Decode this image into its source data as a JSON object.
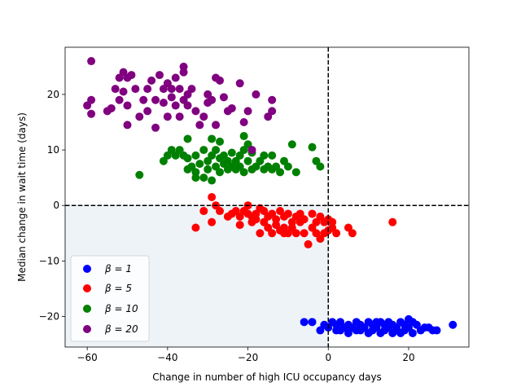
{
  "chart_data": {
    "type": "scatter",
    "title": "",
    "xlabel": "Change in number of high ICU occupancy days",
    "ylabel": "Median change in wait time (days)",
    "xlim": [
      -65.5,
      35
    ],
    "ylim": [
      -25.5,
      28.5
    ],
    "xticks": [
      -60,
      -40,
      -20,
      0,
      20
    ],
    "yticks": [
      -20,
      -10,
      0,
      10,
      20
    ],
    "xtick_labels": [
      "−60",
      "−40",
      "−20",
      "0",
      "20"
    ],
    "ytick_labels": [
      "−20",
      "−10",
      "0",
      "10",
      "20"
    ],
    "reference_lines": {
      "x": 0,
      "y": 0,
      "style": "dashed"
    },
    "shaded_region": {
      "x": [
        -65.5,
        0
      ],
      "y": [
        -25.5,
        0
      ],
      "color": "#eef3f8"
    },
    "legend": {
      "position": "lower-left",
      "entries": [
        {
          "series": "b1",
          "label": "β = 1"
        },
        {
          "series": "b5",
          "label": "β = 5"
        },
        {
          "series": "b10",
          "label": "β = 10"
        },
        {
          "series": "b20",
          "label": "β = 20"
        }
      ]
    },
    "series": [
      {
        "name": "beta=1",
        "id": "b1",
        "color": "#0000ff",
        "points": [
          [
            -6,
            -21
          ],
          [
            -4,
            -21
          ],
          [
            -2,
            -22.5
          ],
          [
            -1,
            -21.5
          ],
          [
            0,
            -22
          ],
          [
            1,
            -21
          ],
          [
            2,
            -21.5
          ],
          [
            2,
            -22.5
          ],
          [
            3,
            -21
          ],
          [
            4,
            -22
          ],
          [
            5,
            -21.5
          ],
          [
            5,
            -23
          ],
          [
            6,
            -22
          ],
          [
            7,
            -21
          ],
          [
            7,
            -22.5
          ],
          [
            8,
            -21.5
          ],
          [
            9,
            -22
          ],
          [
            10,
            -21
          ],
          [
            10,
            -23
          ],
          [
            11,
            -21.5
          ],
          [
            11,
            -22.5
          ],
          [
            12,
            -22
          ],
          [
            13,
            -21
          ],
          [
            13,
            -23
          ],
          [
            14,
            -21.5
          ],
          [
            14,
            -22.5
          ],
          [
            15,
            -22
          ],
          [
            15,
            -21
          ],
          [
            16,
            -23
          ],
          [
            16,
            -21.5
          ],
          [
            17,
            -22
          ],
          [
            17,
            -22.5
          ],
          [
            18,
            -21
          ],
          [
            18,
            -23
          ],
          [
            19,
            -21.5
          ],
          [
            19,
            -22.5
          ],
          [
            20,
            -22
          ],
          [
            20,
            -20.5
          ],
          [
            21,
            -21
          ],
          [
            21,
            -23
          ],
          [
            22,
            -21.5
          ],
          [
            23,
            -22.5
          ],
          [
            24,
            -22
          ],
          [
            25,
            -22
          ],
          [
            26,
            -22.5
          ],
          [
            27,
            -22.5
          ],
          [
            31,
            -21.5
          ],
          [
            3,
            -22.5
          ],
          [
            8,
            -22.5
          ],
          [
            12,
            -21
          ]
        ]
      },
      {
        "name": "beta=5",
        "id": "b5",
        "color": "#ff0000",
        "points": [
          [
            -33,
            -4
          ],
          [
            -31,
            -1
          ],
          [
            -29,
            1.5
          ],
          [
            -29,
            -3
          ],
          [
            -28,
            0
          ],
          [
            -27,
            -1
          ],
          [
            -25,
            -2
          ],
          [
            -24,
            -1.5
          ],
          [
            -23,
            -1
          ],
          [
            -22,
            -2
          ],
          [
            -22,
            -3.5
          ],
          [
            -21,
            -1
          ],
          [
            -20,
            0
          ],
          [
            -19,
            -2
          ],
          [
            -19,
            -3
          ],
          [
            -18,
            -1.5
          ],
          [
            -18,
            -2.5
          ],
          [
            -17,
            -0.5
          ],
          [
            -17,
            -5
          ],
          [
            -16,
            -1
          ],
          [
            -16,
            -3
          ],
          [
            -15,
            -2
          ],
          [
            -15,
            -4
          ],
          [
            -14,
            -1.5
          ],
          [
            -14,
            -5
          ],
          [
            -13,
            -2.5
          ],
          [
            -13,
            -3.5
          ],
          [
            -12,
            -1
          ],
          [
            -12,
            -4.5
          ],
          [
            -11,
            -2
          ],
          [
            -11,
            -4
          ],
          [
            -10,
            -1.5
          ],
          [
            -10,
            -5
          ],
          [
            -9,
            -3
          ],
          [
            -9,
            -4
          ],
          [
            -8,
            -2
          ],
          [
            -8,
            -5
          ],
          [
            -7,
            -1.5
          ],
          [
            -7,
            -3
          ],
          [
            -6,
            -2.5
          ],
          [
            -6,
            -5
          ],
          [
            -5,
            -7
          ],
          [
            -4,
            -1.5
          ],
          [
            -4,
            -4
          ],
          [
            -3,
            -3
          ],
          [
            -3,
            -5
          ],
          [
            -2,
            -2
          ],
          [
            -2,
            -6
          ],
          [
            -1,
            -3
          ],
          [
            -1,
            -5
          ],
          [
            0,
            -2.5
          ],
          [
            0,
            -4.5
          ],
          [
            1,
            -3
          ],
          [
            1,
            -4
          ],
          [
            2,
            -5
          ],
          [
            5,
            -4
          ],
          [
            6,
            -5
          ],
          [
            16,
            -3
          ],
          [
            -20,
            -1.5
          ],
          [
            -11,
            -5
          ]
        ]
      },
      {
        "name": "beta=10",
        "id": "b10",
        "color": "#008000",
        "points": [
          [
            -47,
            5.5
          ],
          [
            -41,
            8
          ],
          [
            -40,
            9
          ],
          [
            -39,
            10
          ],
          [
            -38,
            9
          ],
          [
            -37,
            10
          ],
          [
            -36,
            9
          ],
          [
            -35,
            8.5
          ],
          [
            -35,
            6.5
          ],
          [
            -34,
            7
          ],
          [
            -33,
            6
          ],
          [
            -33,
            9
          ],
          [
            -32,
            7.5
          ],
          [
            -31,
            5
          ],
          [
            -31,
            10
          ],
          [
            -30,
            8
          ],
          [
            -30,
            6.5
          ],
          [
            -29,
            9
          ],
          [
            -29,
            12
          ],
          [
            -28,
            7
          ],
          [
            -28,
            10
          ],
          [
            -27,
            6
          ],
          [
            -27,
            8.5
          ],
          [
            -27,
            11.5
          ],
          [
            -26,
            7.5
          ],
          [
            -26,
            9
          ],
          [
            -25,
            6.5
          ],
          [
            -25,
            8
          ],
          [
            -24,
            9.5
          ],
          [
            -24,
            7
          ],
          [
            -23,
            6.5
          ],
          [
            -23,
            8
          ],
          [
            -22,
            7
          ],
          [
            -22,
            9
          ],
          [
            -21,
            10
          ],
          [
            -21,
            6
          ],
          [
            -20,
            8
          ],
          [
            -20,
            11
          ],
          [
            -19,
            9.5
          ],
          [
            -19,
            6.5
          ],
          [
            -18,
            7
          ],
          [
            -17,
            8
          ],
          [
            -16,
            6.5
          ],
          [
            -16,
            9
          ],
          [
            -15,
            7
          ],
          [
            -14,
            9
          ],
          [
            -14,
            6.5
          ],
          [
            -13,
            7
          ],
          [
            -12,
            6
          ],
          [
            -11,
            8
          ],
          [
            -10,
            7
          ],
          [
            -9,
            11
          ],
          [
            -8,
            6
          ],
          [
            -4,
            10.5
          ],
          [
            -3,
            8
          ],
          [
            -2,
            7
          ],
          [
            -33,
            5
          ],
          [
            -21,
            12.5
          ],
          [
            -35,
            12
          ],
          [
            -29,
            4.5
          ]
        ]
      },
      {
        "name": "beta=20",
        "id": "b20",
        "color": "#800080",
        "points": [
          [
            -60,
            18
          ],
          [
            -59,
            26
          ],
          [
            -59,
            19
          ],
          [
            -59,
            16.5
          ],
          [
            -55,
            17
          ],
          [
            -54,
            17.5
          ],
          [
            -53,
            21
          ],
          [
            -52,
            23
          ],
          [
            -52,
            19
          ],
          [
            -51,
            24
          ],
          [
            -51,
            20.5
          ],
          [
            -50,
            23
          ],
          [
            -50,
            18
          ],
          [
            -50,
            14.5
          ],
          [
            -49,
            23.5
          ],
          [
            -48,
            21
          ],
          [
            -47,
            16
          ],
          [
            -46,
            19
          ],
          [
            -45,
            21
          ],
          [
            -45,
            17
          ],
          [
            -44,
            22.5
          ],
          [
            -43,
            14
          ],
          [
            -43,
            19
          ],
          [
            -42,
            23.5
          ],
          [
            -41,
            21
          ],
          [
            -41,
            18.5
          ],
          [
            -40,
            22
          ],
          [
            -40,
            16
          ],
          [
            -39,
            21
          ],
          [
            -39,
            19.5
          ],
          [
            -38,
            23
          ],
          [
            -38,
            18
          ],
          [
            -37,
            21
          ],
          [
            -37,
            16
          ],
          [
            -36,
            19
          ],
          [
            -36,
            24
          ],
          [
            -35,
            20
          ],
          [
            -35,
            18
          ],
          [
            -34,
            21
          ],
          [
            -33,
            17
          ],
          [
            -32,
            14.5
          ],
          [
            -31,
            16
          ],
          [
            -30,
            20
          ],
          [
            -30,
            18.5
          ],
          [
            -29,
            19
          ],
          [
            -28,
            23
          ],
          [
            -28,
            14.5
          ],
          [
            -27,
            22.5
          ],
          [
            -26,
            19.5
          ],
          [
            -25,
            17
          ],
          [
            -24,
            17.5
          ],
          [
            -22,
            22
          ],
          [
            -21,
            15
          ],
          [
            -20,
            17
          ],
          [
            -18,
            20
          ],
          [
            -15,
            16
          ],
          [
            -14,
            19
          ],
          [
            -14,
            17
          ],
          [
            -19,
            10
          ],
          [
            -36,
            25
          ]
        ]
      }
    ]
  }
}
